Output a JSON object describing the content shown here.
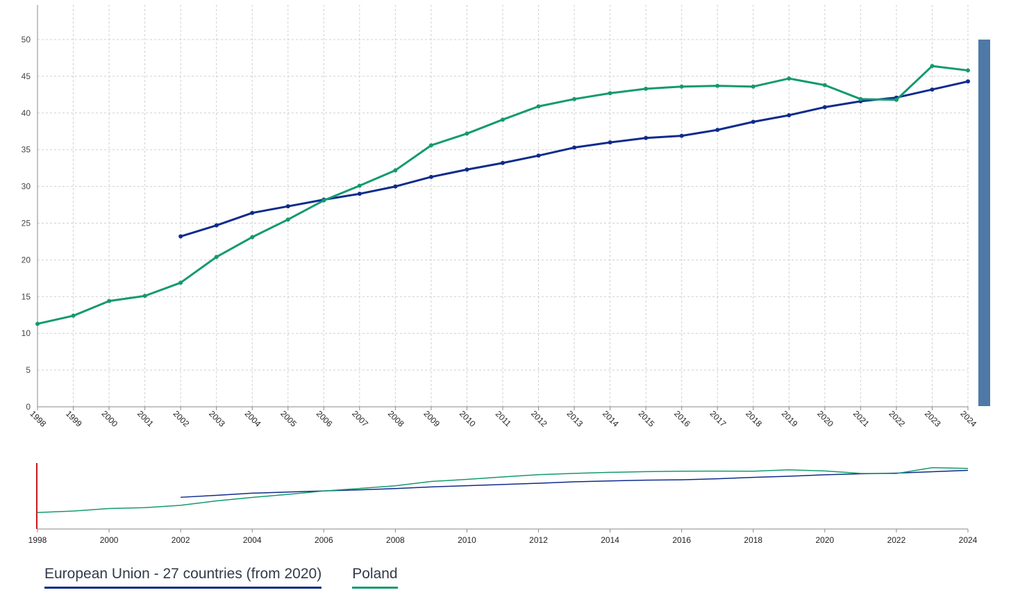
{
  "chart_data": {
    "type": "line",
    "title": "",
    "xlabel": "",
    "ylabel": "",
    "x": [
      1998,
      1999,
      2000,
      2001,
      2002,
      2003,
      2004,
      2005,
      2006,
      2007,
      2008,
      2009,
      2010,
      2011,
      2012,
      2013,
      2014,
      2015,
      2016,
      2017,
      2018,
      2019,
      2020,
      2021,
      2022,
      2023,
      2024
    ],
    "ylim": [
      0,
      50
    ],
    "yticks": [
      0,
      5,
      10,
      15,
      20,
      25,
      30,
      35,
      40,
      45,
      50
    ],
    "grid": true,
    "legend_position": "bottom-left",
    "series": [
      {
        "name": "European Union - 27 countries (from 2020)",
        "color": "#0f2b8c",
        "values": [
          null,
          null,
          null,
          null,
          23.2,
          24.7,
          26.4,
          27.3,
          28.2,
          29.0,
          30.0,
          31.3,
          32.3,
          33.2,
          34.2,
          35.3,
          36.0,
          36.6,
          36.9,
          37.7,
          38.8,
          39.7,
          40.8,
          41.6,
          42.1,
          43.2,
          44.3
        ]
      },
      {
        "name": "Poland",
        "color": "#139a6e",
        "values": [
          11.3,
          12.4,
          14.4,
          15.1,
          16.9,
          20.4,
          23.1,
          25.5,
          28.1,
          30.1,
          32.2,
          35.6,
          37.2,
          39.1,
          40.9,
          41.9,
          42.7,
          43.3,
          43.6,
          43.7,
          43.6,
          44.7,
          43.8,
          41.9,
          41.8,
          46.4,
          45.8
        ]
      }
    ],
    "overview": {
      "xticks": [
        1998,
        2000,
        2002,
        2004,
        2006,
        2008,
        2010,
        2012,
        2014,
        2016,
        2018,
        2020,
        2022,
        2024
      ]
    }
  },
  "colors": {
    "eu_line": "#0f2b8c",
    "poland_line": "#139a6e",
    "grid": "#cfcfcf",
    "axis": "#888888",
    "scroll_handle": "#4e79a7",
    "range_marker": "#c8161d"
  }
}
